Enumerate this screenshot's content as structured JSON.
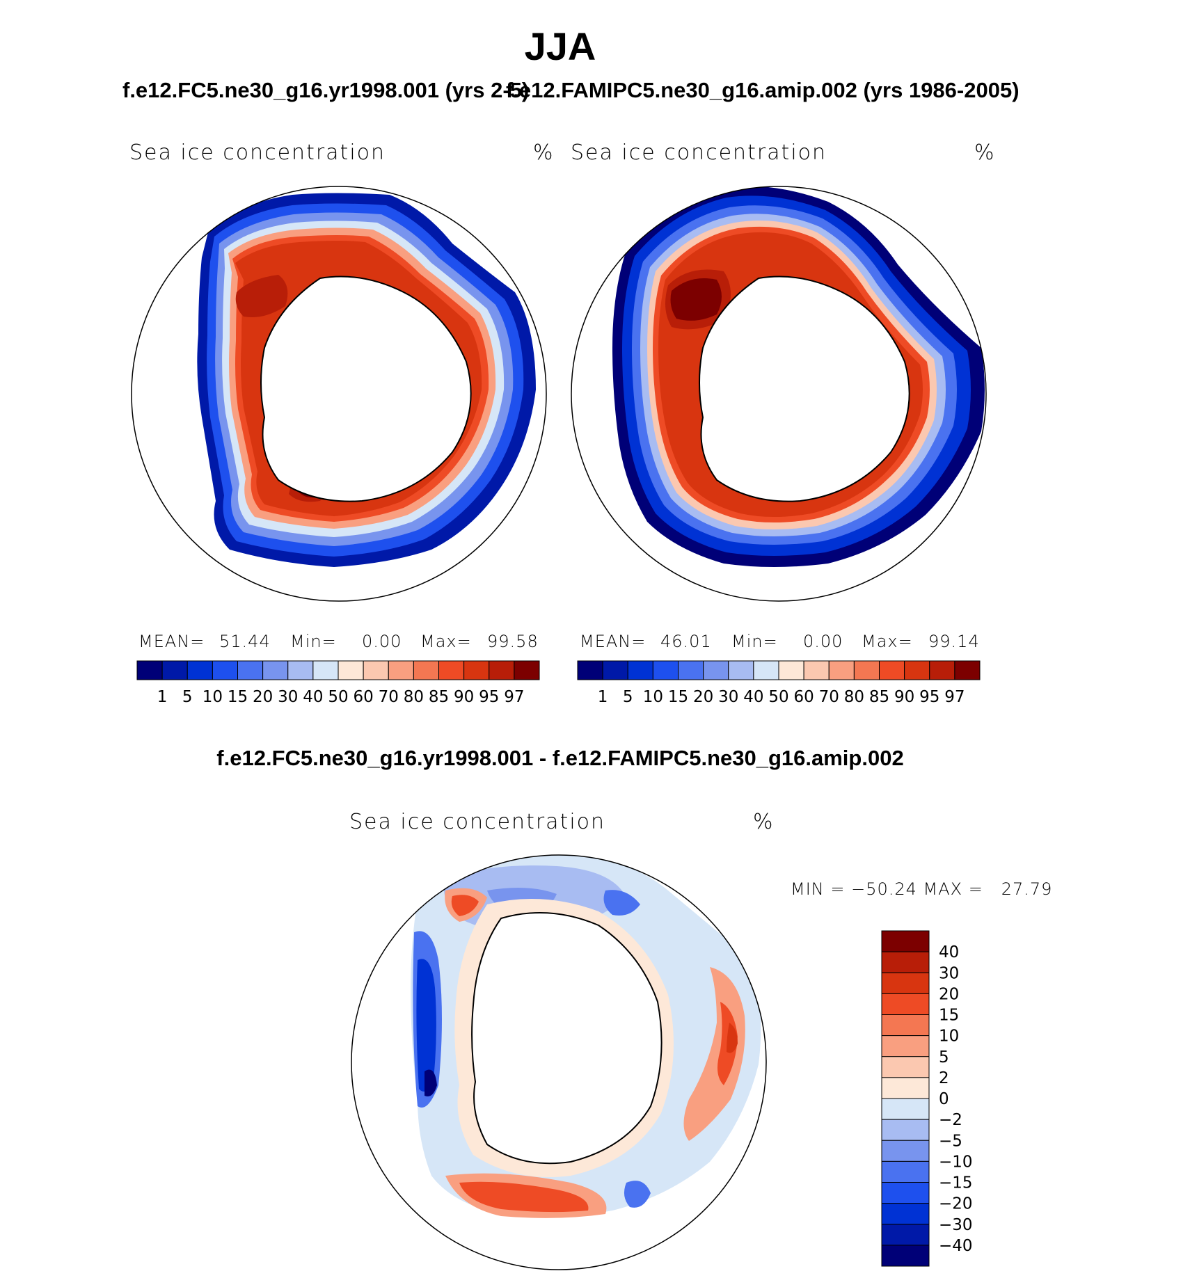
{
  "title": "JJA",
  "panels": [
    {
      "case": "f.e12.FC5.ne30_g16.yr1998.001 (yrs 2-5)",
      "variable": "Sea ice concentration",
      "units": "%",
      "stats": {
        "mean_label": "MEAN=",
        "mean": "51.44",
        "min_label": "Min=",
        "min": "0.00",
        "max_label": "Max=",
        "max": "99.58"
      }
    },
    {
      "case": "f.e12.FAMIPC5.ne30_g16.amip.002 (yrs 1986-2005)",
      "variable": "Sea ice concentration",
      "units": "%",
      "stats": {
        "mean_label": "MEAN=",
        "mean": "46.01",
        "min_label": "Min=",
        "min": "0.00",
        "max_label": "Max=",
        "max": "99.14"
      }
    }
  ],
  "diff_panel": {
    "case": "f.e12.FC5.ne30_g16.yr1998.001 - f.e12.FAMIPC5.ne30_g16.amip.002",
    "variable": "Sea ice concentration",
    "units": "%",
    "minmax": "MIN = −50.24 MAX =   27.79"
  },
  "colorbar_levels": [
    "1",
    "5",
    "10",
    "15",
    "20",
    "30",
    "40",
    "50",
    "60",
    "70",
    "80",
    "85",
    "90",
    "95",
    "97"
  ],
  "colorbar_colors": [
    "#000077",
    "#0019a8",
    "#0032d4",
    "#1e50ee",
    "#4a72f0",
    "#7894ee",
    "#a8bcf2",
    "#d6e6f7",
    "#fde8d8",
    "#fbc8b0",
    "#f99f80",
    "#f47752",
    "#ee4b25",
    "#d83510",
    "#b81e08",
    "#7c0000"
  ],
  "diff_levels": [
    "40",
    "30",
    "20",
    "15",
    "10",
    "5",
    "2",
    "0",
    "−2",
    "−5",
    "−10",
    "−15",
    "−20",
    "−30",
    "−40"
  ],
  "diff_colors": [
    "#7c0000",
    "#b81e08",
    "#d83510",
    "#ee4b25",
    "#f47752",
    "#f99f80",
    "#fbc8b0",
    "#fde8d8",
    "#d6e6f7",
    "#a8bcf2",
    "#7894ee",
    "#4a72f0",
    "#1e50ee",
    "#0032d4",
    "#0019a8",
    "#000077"
  ]
}
